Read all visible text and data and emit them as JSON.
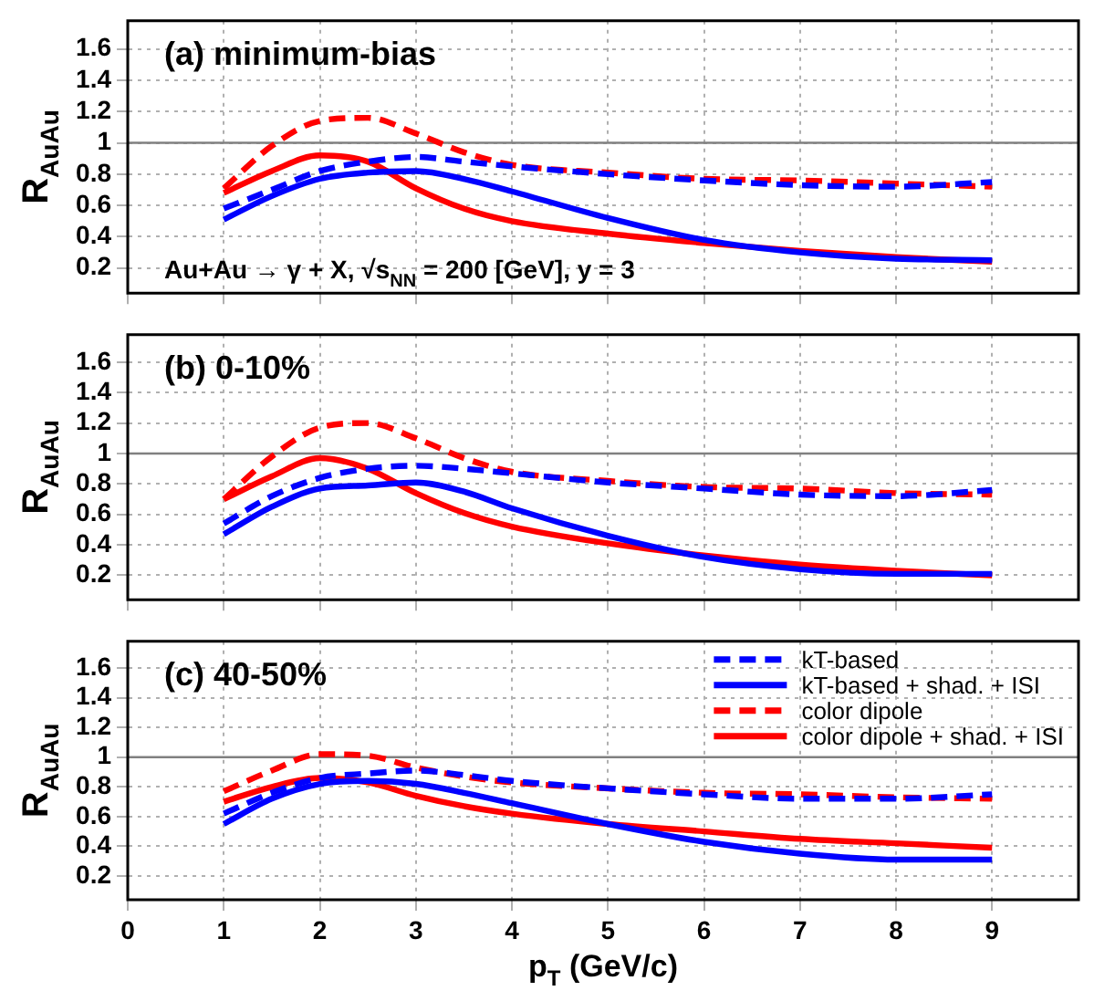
{
  "chart_data": [
    {
      "type": "line",
      "title": "(a) minimum-bias",
      "ylabel": "R$_{AuAu}$",
      "annotations": [
        "Au+Au → γ + X, √s$_{NN}$ = 200 [GeV], y = 3"
      ],
      "x": [
        1,
        1.5,
        2,
        2.5,
        3,
        3.5,
        4,
        5,
        6,
        7,
        8,
        9
      ],
      "xlim": [
        0,
        9.9
      ],
      "xticks": [
        0,
        1,
        2,
        3,
        4,
        5,
        6,
        7,
        8,
        9
      ],
      "ylim": [
        0.04,
        1.78
      ],
      "yticks": [
        0.2,
        0.4,
        0.6,
        0.8,
        1,
        1.2,
        1.4,
        1.6
      ],
      "grid": true,
      "tick_labels": "y",
      "marker": "none",
      "legend": false,
      "ref_lines": [
        {
          "axis": "y",
          "value": 1,
          "color": "#808080"
        }
      ],
      "series": [
        {
          "color": "#0000ff",
          "line_style": "dashed",
          "values": [
            0.58,
            0.7,
            0.82,
            0.88,
            0.91,
            0.88,
            0.85,
            0.8,
            0.76,
            0.73,
            0.72,
            0.75
          ]
        },
        {
          "color": "#0000ff",
          "line_style": "solid",
          "values": [
            0.51,
            0.66,
            0.77,
            0.81,
            0.82,
            0.77,
            0.69,
            0.52,
            0.38,
            0.3,
            0.26,
            0.25
          ]
        },
        {
          "color": "#ff0000",
          "line_style": "dashed",
          "values": [
            0.71,
            0.98,
            1.14,
            1.16,
            1.06,
            0.94,
            0.86,
            0.81,
            0.77,
            0.76,
            0.74,
            0.72
          ]
        },
        {
          "color": "#ff0000",
          "line_style": "solid",
          "values": [
            0.68,
            0.82,
            0.92,
            0.88,
            0.71,
            0.58,
            0.5,
            0.42,
            0.36,
            0.31,
            0.27,
            0.24
          ]
        }
      ]
    },
    {
      "type": "line",
      "title": "(b) 0-10%",
      "ylabel": "R$_{AuAu}$",
      "x": [
        1,
        1.5,
        2,
        2.5,
        3,
        3.5,
        4,
        5,
        6,
        7,
        8,
        9
      ],
      "xlim": [
        0,
        9.9
      ],
      "xticks": [
        0,
        1,
        2,
        3,
        4,
        5,
        6,
        7,
        8,
        9
      ],
      "ylim": [
        0.04,
        1.78
      ],
      "yticks": [
        0.2,
        0.4,
        0.6,
        0.8,
        1,
        1.2,
        1.4,
        1.6
      ],
      "grid": true,
      "tick_labels": "y",
      "marker": "none",
      "legend": false,
      "ref_lines": [
        {
          "axis": "y",
          "value": 1,
          "color": "#808080"
        }
      ],
      "series": [
        {
          "color": "#0000ff",
          "line_style": "dashed",
          "values": [
            0.54,
            0.72,
            0.84,
            0.9,
            0.92,
            0.9,
            0.87,
            0.81,
            0.77,
            0.73,
            0.72,
            0.76
          ]
        },
        {
          "color": "#0000ff",
          "line_style": "solid",
          "values": [
            0.47,
            0.65,
            0.77,
            0.79,
            0.81,
            0.75,
            0.64,
            0.46,
            0.32,
            0.24,
            0.21,
            0.21
          ]
        },
        {
          "color": "#ff0000",
          "line_style": "dashed",
          "values": [
            0.7,
            0.98,
            1.17,
            1.2,
            1.1,
            0.97,
            0.88,
            0.82,
            0.78,
            0.77,
            0.74,
            0.73
          ]
        },
        {
          "color": "#ff0000",
          "line_style": "solid",
          "values": [
            0.7,
            0.85,
            0.97,
            0.9,
            0.74,
            0.61,
            0.52,
            0.41,
            0.33,
            0.27,
            0.23,
            0.2
          ]
        }
      ]
    },
    {
      "type": "line",
      "title": "(c) 40-50%",
      "xlabel": "p$_{T}$ (GeV/c)",
      "ylabel": "R$_{AuAu}$",
      "x": [
        1,
        1.5,
        2,
        2.5,
        3,
        3.5,
        4,
        5,
        6,
        7,
        8,
        9
      ],
      "xlim": [
        0,
        9.9
      ],
      "xticks": [
        0,
        1,
        2,
        3,
        4,
        5,
        6,
        7,
        8,
        9
      ],
      "ylim": [
        0.04,
        1.78
      ],
      "yticks": [
        0.2,
        0.4,
        0.6,
        0.8,
        1,
        1.2,
        1.4,
        1.6
      ],
      "grid": true,
      "marker": "none",
      "legend": "top right",
      "ref_lines": [
        {
          "axis": "y",
          "value": 1,
          "color": "#808080"
        }
      ],
      "series": [
        {
          "name": "kT-based",
          "color": "#0000ff",
          "line_style": "dashed",
          "values": [
            0.62,
            0.76,
            0.86,
            0.89,
            0.91,
            0.88,
            0.84,
            0.79,
            0.75,
            0.72,
            0.72,
            0.75
          ]
        },
        {
          "name": "kT-based + shad. + ISI",
          "color": "#0000ff",
          "line_style": "solid",
          "values": [
            0.55,
            0.72,
            0.82,
            0.84,
            0.82,
            0.76,
            0.69,
            0.55,
            0.43,
            0.35,
            0.31,
            0.31
          ]
        },
        {
          "name": "color dipole",
          "color": "#ff0000",
          "line_style": "dashed",
          "values": [
            0.77,
            0.91,
            1.02,
            1.01,
            0.93,
            0.87,
            0.83,
            0.79,
            0.76,
            0.75,
            0.73,
            0.72
          ]
        },
        {
          "name": "color dipole + shad. + ISI",
          "color": "#ff0000",
          "line_style": "solid",
          "values": [
            0.7,
            0.8,
            0.86,
            0.83,
            0.74,
            0.67,
            0.62,
            0.55,
            0.5,
            0.45,
            0.42,
            0.39
          ]
        }
      ]
    }
  ]
}
